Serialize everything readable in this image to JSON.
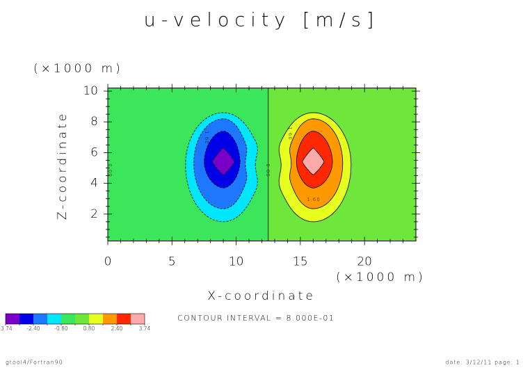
{
  "chart_data": {
    "type": "contour",
    "title": "u-velocity [m/s]",
    "x_label": "X-coordinate",
    "x_unit": "(×1000 m)",
    "y_label": "Z-coordinate",
    "y_unit": "(×1000 m)",
    "xlim": [
      0,
      24
    ],
    "ylim": [
      0.25,
      10.2
    ],
    "xticks": [
      0,
      5,
      10,
      15,
      20
    ],
    "yticks": [
      2,
      4,
      6,
      8,
      10
    ],
    "colorbar": {
      "bounds": [
        {
          "value": -3.74,
          "label": "-3.74"
        },
        -3.2,
        {
          "value": -2.4,
          "label": "-2.40"
        },
        -1.6,
        {
          "value": -0.8,
          "label": "-0.80"
        },
        0,
        {
          "value": 0.8,
          "label": "0.80"
        },
        1.6,
        {
          "value": 2.4,
          "label": "2.40"
        },
        3.2,
        {
          "value": 3.74,
          "label": "3.74"
        }
      ],
      "colors": [
        "#7a00c8",
        "#0000e6",
        "#1e78ff",
        "#00e6ff",
        "#3ce65a",
        "#6ee63c",
        "#e6ff1e",
        "#ff9900",
        "#ff2800",
        "#ffaaaa"
      ]
    },
    "contour_labels": [
      {
        "value": 0,
        "label": "0.00"
      },
      {
        "value": -1.6,
        "label": "-1.60"
      },
      {
        "value": 0,
        "label": "0.00"
      },
      {
        "value": 1.6,
        "label": "1.60"
      },
      {
        "value": 1.6,
        "label": "1.60"
      }
    ],
    "annotation": "CONTOUR INTERVAL = 8.000E-01",
    "footer_left": "gtool4/Fortran90",
    "footer_right": "date: 3/12/11 page: 1"
  }
}
